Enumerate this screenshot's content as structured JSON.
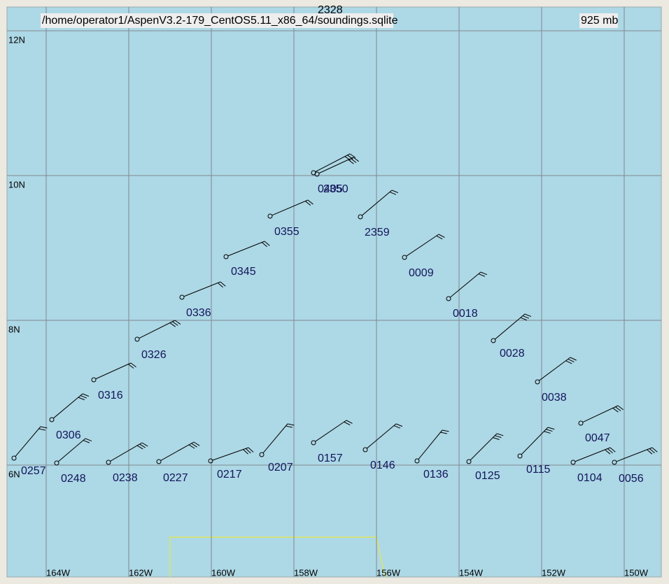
{
  "header": {
    "file": "/home/operator1/AspenV3.2-179_CentOS5.11_x86_64/soundings.sqlite",
    "level": "925 mb",
    "top_label": "2328"
  },
  "lat_labels": [
    "12N",
    "10N",
    "8N",
    "6N"
  ],
  "lon_labels": [
    "164W",
    "162W",
    "160W",
    "158W",
    "156W",
    "154W",
    "152W",
    "150W"
  ],
  "stations": [
    "0257",
    "0248",
    "0238",
    "0227",
    "0217",
    "0207",
    "0157",
    "0146",
    "0136",
    "0125",
    "0115",
    "0104",
    "0056",
    "0306",
    "0316",
    "0326",
    "0336",
    "0345",
    "0355",
    "0405",
    "2350",
    "2359",
    "0009",
    "0018",
    "0028",
    "0038",
    "0047"
  ]
}
